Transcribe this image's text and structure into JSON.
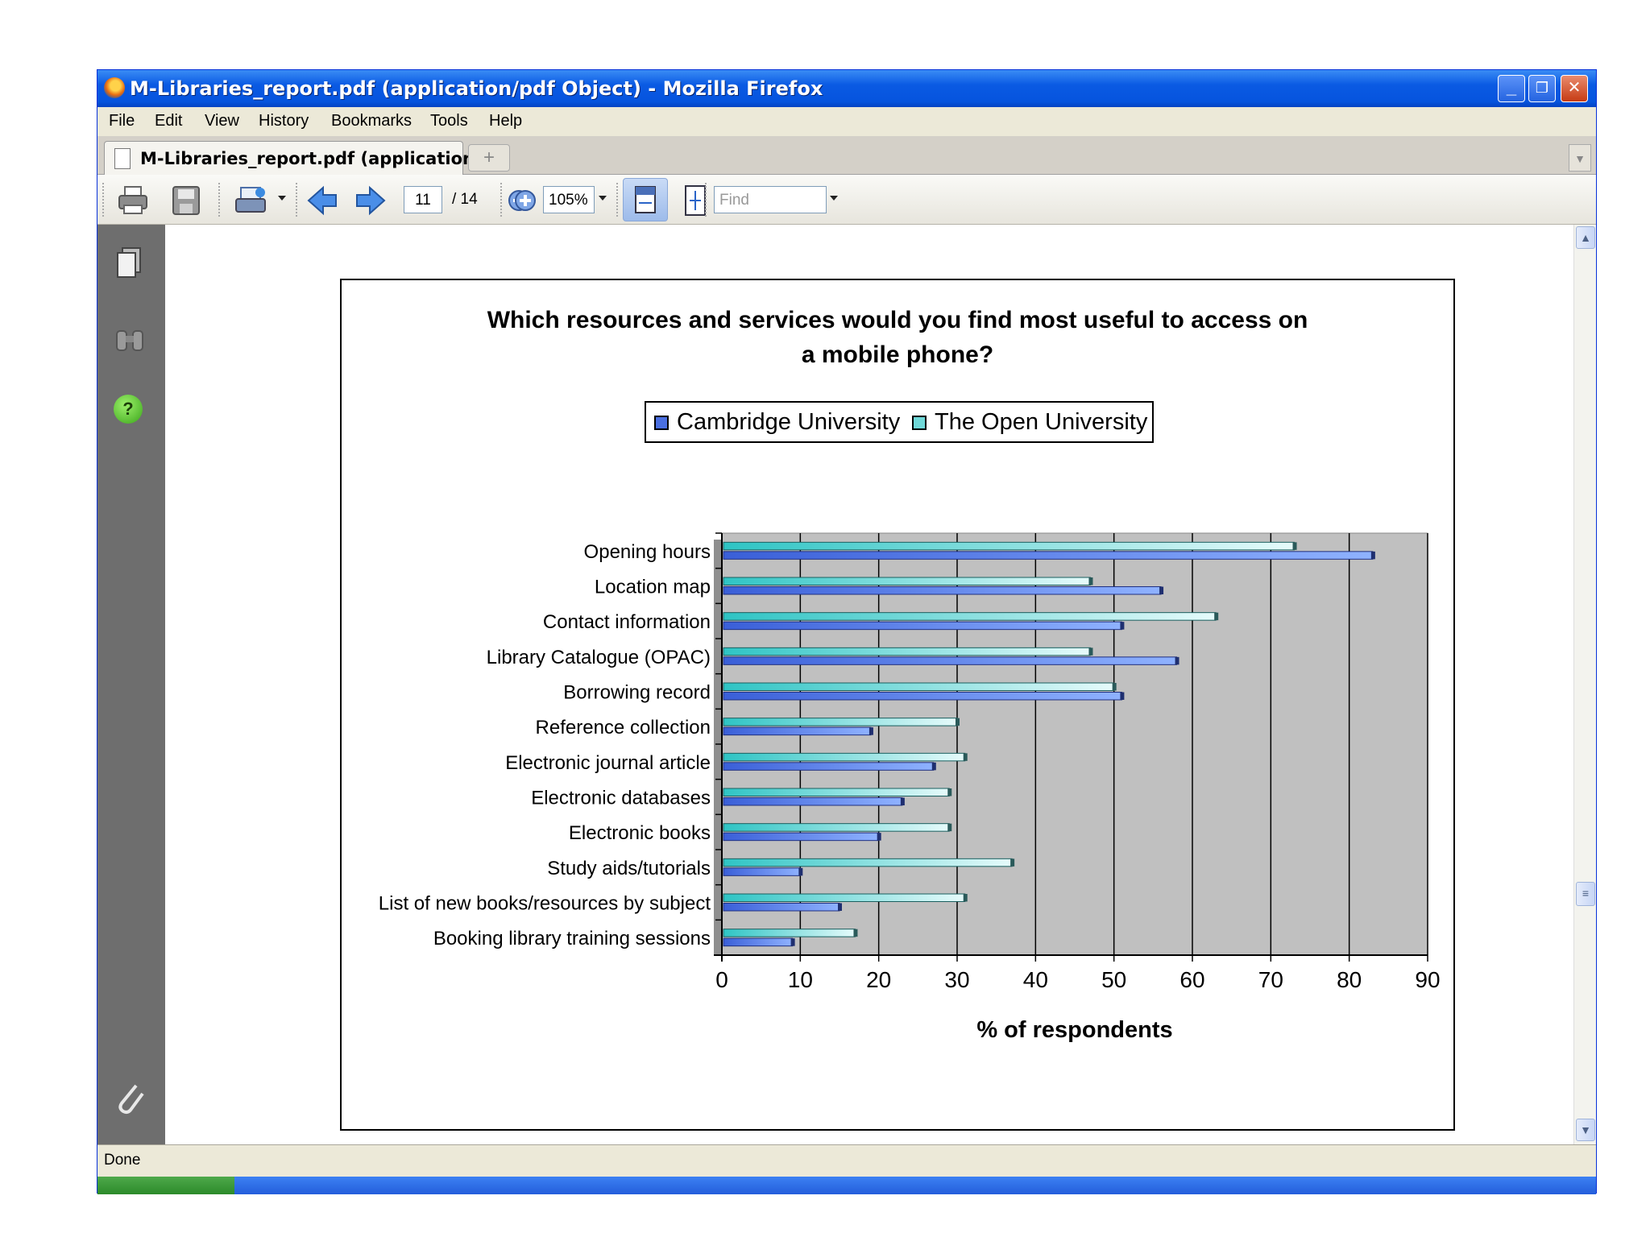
{
  "window": {
    "title": "M-Libraries_report.pdf (application/pdf Object) - Mozilla Firefox",
    "controls": {
      "minimize": "_",
      "maximize": "❐",
      "close": "✕"
    }
  },
  "menu": [
    "File",
    "Edit",
    "View",
    "History",
    "Bookmarks",
    "Tools",
    "Help"
  ],
  "tab": {
    "label": "M-Libraries_report.pdf (application/...",
    "new_tab": "+"
  },
  "toolbar": {
    "page_current": "11",
    "page_total": "/ 14",
    "zoom": "105%",
    "find_placeholder": "Find",
    "icons": [
      "print-icon",
      "save-icon",
      "export-icon",
      "previous-page-icon",
      "next-page-icon",
      "zoom-out-icon",
      "zoom-in-icon",
      "fit-width-icon",
      "fit-page-icon"
    ]
  },
  "sidebar": {
    "icons": [
      "pages-icon",
      "search-binoculars-icon",
      "help-icon",
      "attachment-icon",
      "comments-icon"
    ]
  },
  "status": {
    "text": "Done"
  },
  "colors": {
    "cambridge": "#4a6fe0",
    "open_university": "#6fd8d8",
    "plot_bg": "#c0c0c0",
    "titlebar": "#0a5ae3"
  },
  "chart_data": {
    "type": "bar",
    "orientation": "horizontal",
    "title": "Which resources and services would you find most useful to access on a mobile phone?",
    "title_lines": [
      "Which resources and services would you find most useful to access on",
      "a mobile phone?"
    ],
    "xlabel": "% of respondents",
    "ylabel": "",
    "xlim": [
      0,
      90
    ],
    "xticks": [
      0,
      10,
      20,
      30,
      40,
      50,
      60,
      70,
      80,
      90
    ],
    "grid": "vertical",
    "legend_position": "top",
    "categories": [
      "Opening hours",
      "Location map",
      "Contact information",
      "Library Catalogue (OPAC)",
      "Borrowing record",
      "Reference collection",
      "Electronic journal article",
      "Electronic databases",
      "Electronic books",
      "Study aids/tutorials",
      "List of new books/resources by subject",
      "Booking library training sessions"
    ],
    "series": [
      {
        "name": "Cambridge University",
        "values": [
          83,
          56,
          51,
          58,
          51,
          19,
          27,
          23,
          20,
          10,
          15,
          9
        ]
      },
      {
        "name": "The Open University",
        "values": [
          73,
          47,
          63,
          47,
          50,
          30,
          31,
          29,
          29,
          37,
          31,
          17
        ]
      }
    ]
  }
}
